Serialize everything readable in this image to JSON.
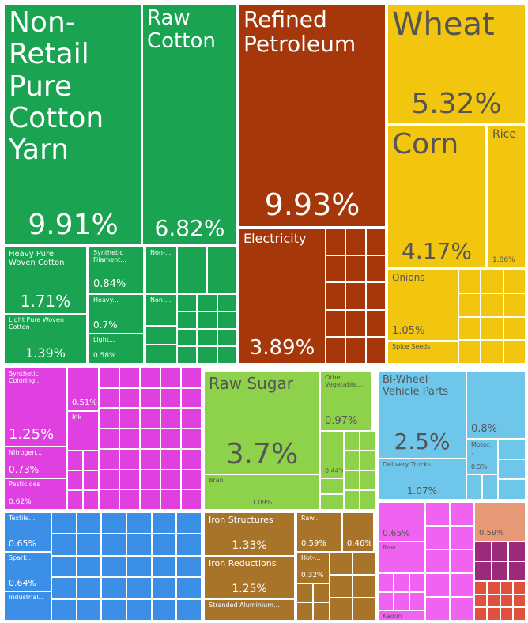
{
  "chart_data": {
    "type": "treemap",
    "categories": [
      "Non-Retail Pure Cotton Yarn",
      "Raw Cotton",
      "Heavy Pure Woven Cotton",
      "Light Pure Woven Cotton",
      "Synthetic Filament...",
      "Heavy...",
      "Light...",
      "Non-...",
      "Non-...",
      "Refined Petroleum",
      "Electricity",
      "Wheat",
      "Corn",
      "Rice",
      "Onions",
      "Spice Seeds",
      "Synthetic Coloring...",
      "Nitrogen...",
      "Pesticides",
      null,
      "Ink",
      "Textile...",
      "Spark...",
      "Industrial...",
      "Raw Sugar",
      "Bran",
      "Other Vegetable...",
      null,
      "Iron Structures",
      "Iron Reductions",
      "Stranded Aluminium...",
      "Raw...",
      null,
      "Hot-...",
      "Bi-Wheel Vehicle Parts",
      "Delivery Trucks",
      null,
      "Motor...",
      null,
      "Raw...",
      "Kaolin",
      null
    ],
    "values": [
      9.91,
      6.82,
      1.71,
      1.39,
      0.84,
      0.7,
      0.58,
      null,
      null,
      9.93,
      3.89,
      5.32,
      4.17,
      1.86,
      1.05,
      null,
      1.25,
      0.73,
      0.62,
      0.51,
      null,
      0.65,
      0.64,
      null,
      3.7,
      1.09,
      0.97,
      0.44,
      1.33,
      1.25,
      null,
      0.59,
      0.46,
      0.32,
      2.5,
      1.07,
      0.8,
      0.5,
      0.65,
      null,
      null,
      0.59
    ],
    "value_labels": [
      "9.91%",
      "6.82%",
      "1.71%",
      "1.39%",
      "0.84%",
      "0.7%",
      "0.58%",
      null,
      null,
      "9.93%",
      "3.89%",
      "5.32%",
      "4.17%",
      "1.86%",
      "1.05%",
      null,
      "1.25%",
      "0.73%",
      "0.62%",
      "0.51%",
      null,
      "0.65%",
      "0.64%",
      null,
      "3.7%",
      "1.09%",
      "0.97%",
      "0.44%",
      "1.33%",
      "1.25%",
      null,
      "0.59%",
      "0.46%",
      "0.32%",
      "2.5%",
      "1.07%",
      "0.8%",
      "0.5%",
      "0.65%",
      null,
      null,
      "0.59%"
    ],
    "colors": [
      "#1aa350",
      "#1aa350",
      "#1aa350",
      "#1aa350",
      "#1aa350",
      "#1aa350",
      "#1aa350",
      "#1aa350",
      "#1aa350",
      "#a6370a",
      "#a6370a",
      "#f2c60f",
      "#f2c60f",
      "#f2c60f",
      "#f2c60f",
      "#f2c60f",
      "#e040e0",
      "#e040e0",
      "#e040e0",
      "#e040e0",
      "#e040e0",
      "#3b8fe6",
      "#3b8fe6",
      "#3b8fe6",
      "#8ed14a",
      "#8ed14a",
      "#8ed14a",
      "#8ed14a",
      "#a8742a",
      "#a8742a",
      "#a8742a",
      "#a8742a",
      "#a8742a",
      "#a8742a",
      "#6ec6ea",
      "#6ec6ea",
      "#6ec6ea",
      "#6ec6ea",
      "#f062f0",
      "#f062f0",
      "#f062f0",
      "#e89a78"
    ]
  }
}
